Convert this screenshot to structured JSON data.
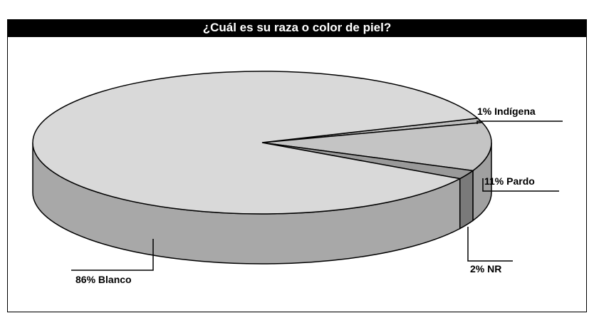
{
  "chart_data": {
    "type": "pie3d",
    "title": "¿Cuál es su raza o color de piel?",
    "categories": [
      "Blanco",
      "Pardo",
      "NR",
      "Indígena"
    ],
    "values": [
      86,
      11,
      2,
      1
    ],
    "value_labels": [
      "86%",
      "11%",
      "2%",
      "1%"
    ],
    "colors": [
      "#d9d9d9",
      "#c4c4c4",
      "#9a9a9a",
      "#bdbdbd"
    ]
  }
}
